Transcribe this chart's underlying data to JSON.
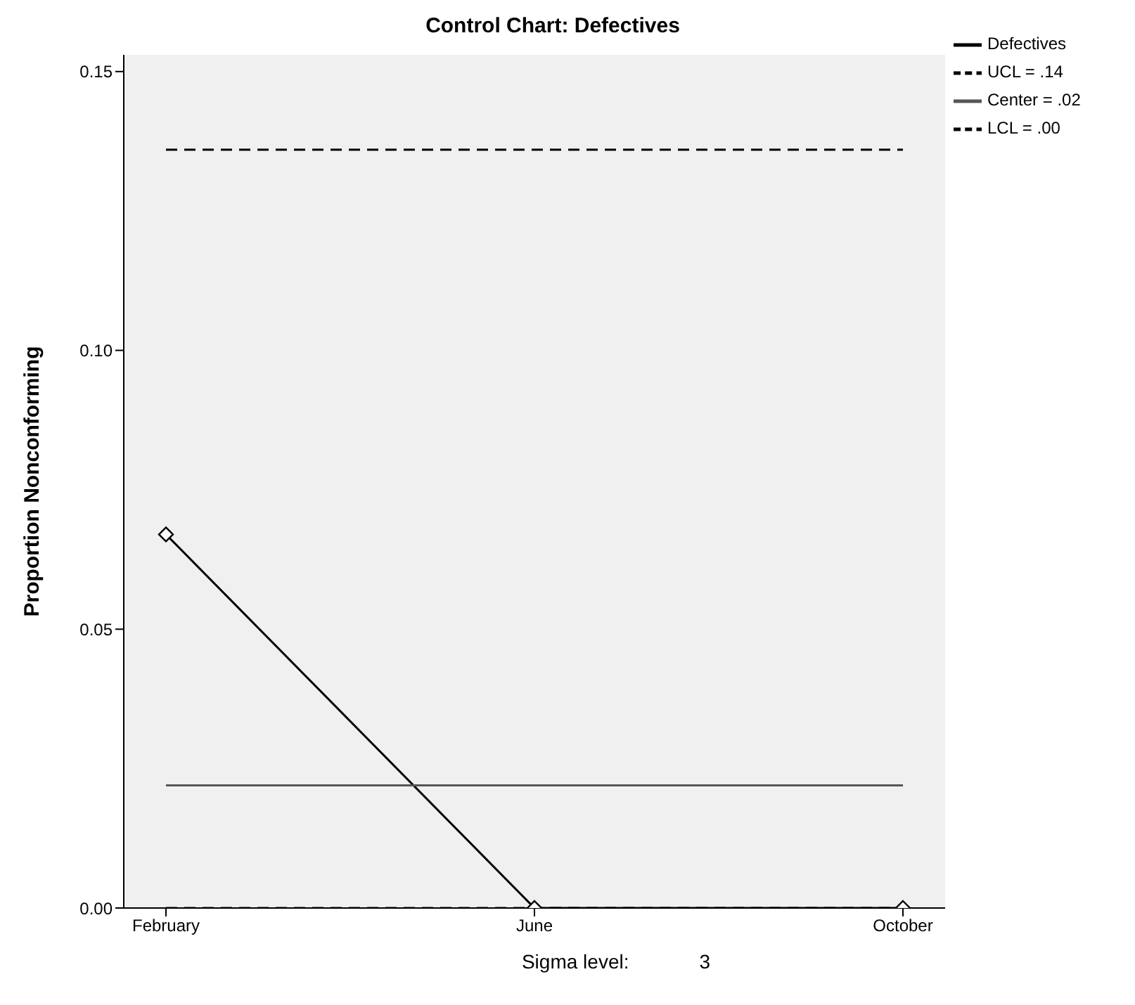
{
  "chart_data": {
    "type": "line",
    "title": "Control Chart: Defectives",
    "ylabel": "Proportion Nonconforming",
    "categories": [
      "February",
      "June",
      "October"
    ],
    "series": [
      {
        "name": "Defectives",
        "color": "#000000",
        "values": [
          0.067,
          0,
          0
        ],
        "marker": "diamond",
        "line_style": "solid"
      },
      {
        "name": "UCL = .14",
        "color": "#000000",
        "values": [
          0.136,
          0.136,
          0.136
        ],
        "marker": "none",
        "line_style": "dashed"
      },
      {
        "name": "Center = .02",
        "color": "#555555",
        "values": [
          0.022,
          0.022,
          0.022
        ],
        "marker": "none",
        "line_style": "solid"
      },
      {
        "name": "LCL = .00",
        "color": "#000000",
        "values": [
          0,
          0,
          0
        ],
        "marker": "none",
        "line_style": "dashed"
      }
    ],
    "ylim": [
      0,
      0.153
    ],
    "yticks": [
      {
        "value": 0,
        "label": "0.00"
      },
      {
        "value": 0.05,
        "label": "0.05"
      },
      {
        "value": 0.1,
        "label": "0.10"
      },
      {
        "value": 0.15,
        "label": "0.15"
      }
    ],
    "grid": false,
    "legend": "top right",
    "annotations": [
      "Sigma level:",
      "3"
    ]
  }
}
